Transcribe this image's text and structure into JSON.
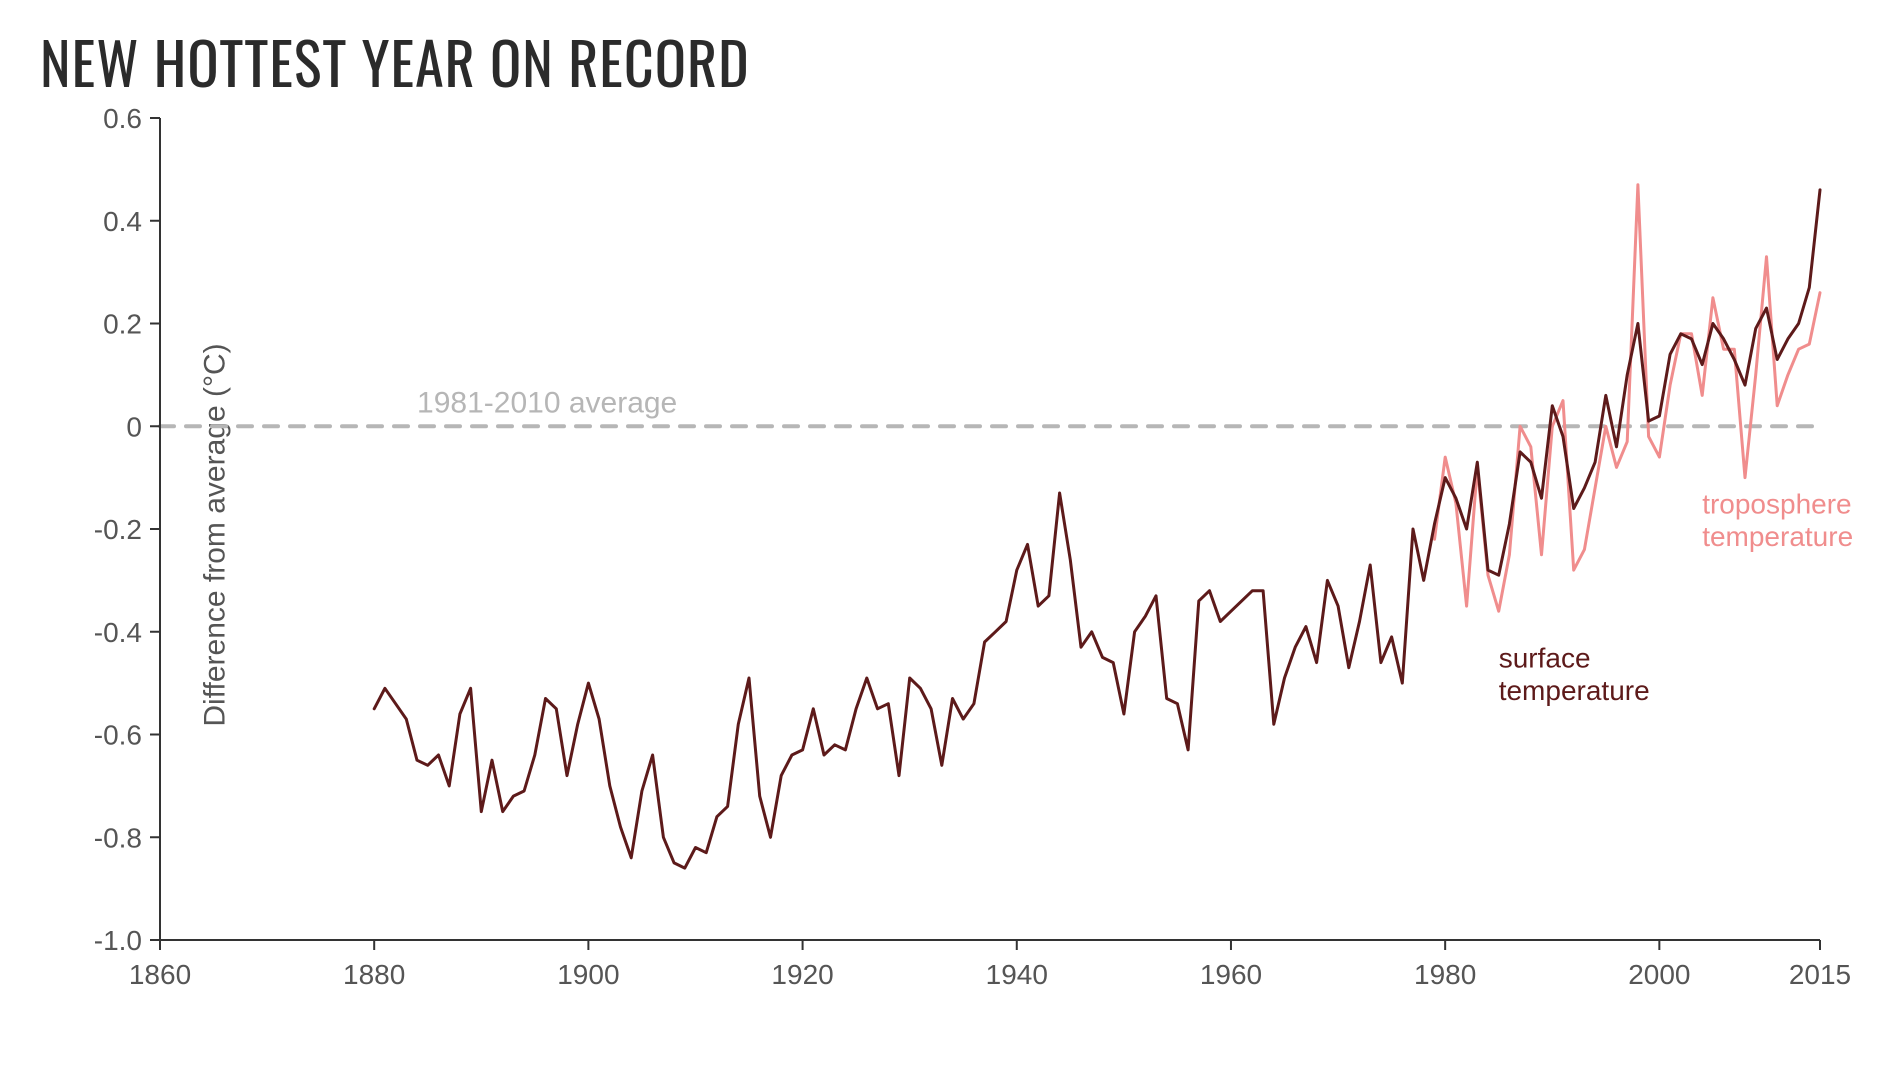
{
  "title": "NEW HOTTEST YEAR ON RECORD",
  "y_axis_label": "Difference from average (°C)",
  "average_line_label": "1981-2010 average",
  "chart": {
    "type": "line",
    "background_color": "#ffffff",
    "axis_color": "#333333",
    "axis_width": 2,
    "tick_font_size": 28,
    "tick_color": "#555555",
    "title_font_size": 58,
    "ylabel_font_size": 30,
    "x": {
      "min": 1860,
      "max": 2015,
      "ticks": [
        1860,
        1880,
        1900,
        1920,
        1940,
        1960,
        1980,
        2000,
        2015
      ]
    },
    "y": {
      "min": -1.0,
      "max": 0.6,
      "ticks": [
        -1.0,
        -0.8,
        -0.6,
        -0.4,
        -0.2,
        0,
        0.2,
        0.4,
        0.6
      ],
      "tick_labels": [
        "-1.0",
        "-0.8",
        "-0.6",
        "-0.4",
        "-0.2",
        "0",
        "0.2",
        "0.4",
        "0.6"
      ]
    },
    "baseline": {
      "value": 0,
      "color": "#b6b6b6",
      "dash": "14 12",
      "width": 4
    },
    "series": [
      {
        "name": "surface temperature",
        "label": "surface\ntemperature",
        "label_pos_year": 1985,
        "label_pos_val": -0.47,
        "color": "#5d1a1a",
        "line_width": 3,
        "x": [
          1880,
          1881,
          1882,
          1883,
          1884,
          1885,
          1886,
          1887,
          1888,
          1889,
          1890,
          1891,
          1892,
          1893,
          1894,
          1895,
          1896,
          1897,
          1898,
          1899,
          1900,
          1901,
          1902,
          1903,
          1904,
          1905,
          1906,
          1907,
          1908,
          1909,
          1910,
          1911,
          1912,
          1913,
          1914,
          1915,
          1916,
          1917,
          1918,
          1919,
          1920,
          1921,
          1922,
          1923,
          1924,
          1925,
          1926,
          1927,
          1928,
          1929,
          1930,
          1931,
          1932,
          1933,
          1934,
          1935,
          1936,
          1937,
          1938,
          1939,
          1940,
          1941,
          1942,
          1943,
          1944,
          1945,
          1946,
          1947,
          1948,
          1949,
          1950,
          1951,
          1952,
          1953,
          1954,
          1955,
          1956,
          1957,
          1958,
          1959,
          1960,
          1961,
          1962,
          1963,
          1964,
          1965,
          1966,
          1967,
          1968,
          1969,
          1970,
          1971,
          1972,
          1973,
          1974,
          1975,
          1976,
          1977,
          1978,
          1979,
          1980,
          1981,
          1982,
          1983,
          1984,
          1985,
          1986,
          1987,
          1988,
          1989,
          1990,
          1991,
          1992,
          1993,
          1994,
          1995,
          1996,
          1997,
          1998,
          1999,
          2000,
          2001,
          2002,
          2003,
          2004,
          2005,
          2006,
          2007,
          2008,
          2009,
          2010,
          2011,
          2012,
          2013,
          2014,
          2015
        ],
        "y": [
          -0.55,
          -0.51,
          -0.54,
          -0.57,
          -0.65,
          -0.66,
          -0.64,
          -0.7,
          -0.56,
          -0.51,
          -0.75,
          -0.65,
          -0.75,
          -0.72,
          -0.71,
          -0.64,
          -0.53,
          -0.55,
          -0.68,
          -0.58,
          -0.5,
          -0.57,
          -0.7,
          -0.78,
          -0.84,
          -0.71,
          -0.64,
          -0.8,
          -0.85,
          -0.86,
          -0.82,
          -0.83,
          -0.76,
          -0.74,
          -0.58,
          -0.49,
          -0.72,
          -0.8,
          -0.68,
          -0.64,
          -0.63,
          -0.55,
          -0.64,
          -0.62,
          -0.63,
          -0.55,
          -0.49,
          -0.55,
          -0.54,
          -0.68,
          -0.49,
          -0.51,
          -0.55,
          -0.66,
          -0.53,
          -0.57,
          -0.54,
          -0.42,
          -0.4,
          -0.38,
          -0.28,
          -0.23,
          -0.35,
          -0.33,
          -0.13,
          -0.26,
          -0.43,
          -0.4,
          -0.45,
          -0.46,
          -0.56,
          -0.4,
          -0.37,
          -0.33,
          -0.53,
          -0.54,
          -0.63,
          -0.34,
          -0.32,
          -0.38,
          -0.36,
          -0.34,
          -0.32,
          -0.32,
          -0.58,
          -0.49,
          -0.43,
          -0.39,
          -0.46,
          -0.3,
          -0.35,
          -0.47,
          -0.38,
          -0.27,
          -0.46,
          -0.41,
          -0.5,
          -0.2,
          -0.3,
          -0.19,
          -0.1,
          -0.14,
          -0.2,
          -0.07,
          -0.28,
          -0.29,
          -0.19,
          -0.05,
          -0.07,
          -0.14,
          0.04,
          -0.02,
          -0.16,
          -0.12,
          -0.07,
          0.06,
          -0.04,
          0.1,
          0.2,
          0.01,
          0.02,
          0.14,
          0.18,
          0.17,
          0.12,
          0.2,
          0.17,
          0.13,
          0.08,
          0.19,
          0.23,
          0.13,
          0.17,
          0.2,
          0.27,
          0.46
        ]
      },
      {
        "name": "troposphere temperature",
        "label": "troposphere\ntemperature",
        "label_pos_year": 2004,
        "label_pos_val": -0.17,
        "color": "#f08d8d",
        "line_width": 3,
        "x": [
          1979,
          1980,
          1981,
          1982,
          1983,
          1984,
          1985,
          1986,
          1987,
          1988,
          1989,
          1990,
          1991,
          1992,
          1993,
          1994,
          1995,
          1996,
          1997,
          1998,
          1999,
          2000,
          2001,
          2002,
          2003,
          2004,
          2005,
          2006,
          2007,
          2008,
          2009,
          2010,
          2011,
          2012,
          2013,
          2014,
          2015
        ],
        "y": [
          -0.22,
          -0.06,
          -0.15,
          -0.35,
          -0.08,
          -0.29,
          -0.36,
          -0.25,
          0.0,
          -0.04,
          -0.25,
          0.0,
          0.05,
          -0.28,
          -0.24,
          -0.12,
          0.0,
          -0.08,
          -0.03,
          0.47,
          -0.02,
          -0.06,
          0.08,
          0.18,
          0.18,
          0.06,
          0.25,
          0.15,
          0.15,
          -0.1,
          0.1,
          0.33,
          0.04,
          0.1,
          0.15,
          0.16,
          0.26
        ]
      }
    ]
  }
}
